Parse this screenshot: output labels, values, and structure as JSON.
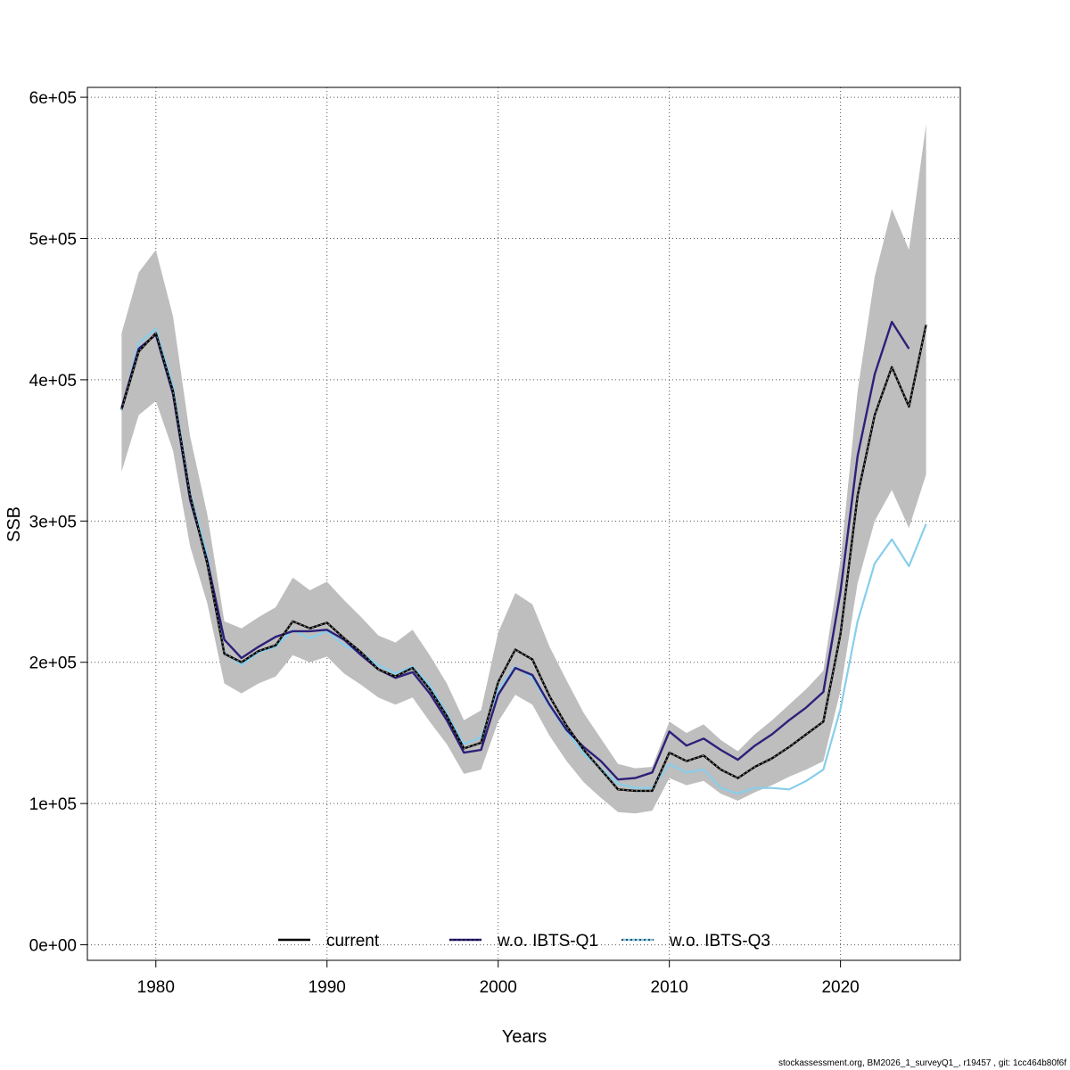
{
  "chart_data": {
    "type": "line",
    "xlabel": "Years",
    "ylabel": "SSB",
    "xlim": [
      1976,
      2027
    ],
    "ylim": [
      -11000,
      607000
    ],
    "x_ticks": [
      1980,
      1990,
      2000,
      2010,
      2020
    ],
    "x_tick_labels": [
      "1980",
      "1990",
      "2000",
      "2010",
      "2020"
    ],
    "y_ticks": [
      0,
      100000,
      200000,
      300000,
      400000,
      500000,
      600000
    ],
    "y_tick_labels": [
      "0e+00",
      "1e+05",
      "2e+05",
      "3e+05",
      "4e+05",
      "5e+05",
      "6e+05"
    ],
    "grid": true,
    "legend_position": "bottom",
    "years": [
      1978,
      1979,
      1980,
      1981,
      1982,
      1983,
      1984,
      1985,
      1986,
      1987,
      1988,
      1989,
      1990,
      1991,
      1992,
      1993,
      1994,
      1995,
      1996,
      1997,
      1998,
      1999,
      2000,
      2001,
      2002,
      2003,
      2004,
      2005,
      2006,
      2007,
      2008,
      2009,
      2010,
      2011,
      2012,
      2013,
      2014,
      2015,
      2016,
      2017,
      2018,
      2019,
      2020,
      2021,
      2022,
      2023,
      2024,
      2025
    ],
    "confidence_band": {
      "name": "current 95% CI",
      "color": "#bebebe",
      "upper": [
        433000,
        476000,
        492000,
        445000,
        360000,
        305000,
        229000,
        224000,
        232000,
        239000,
        260000,
        251000,
        257000,
        244000,
        232000,
        219000,
        214000,
        223000,
        205000,
        185000,
        159000,
        166000,
        221000,
        249000,
        241000,
        211000,
        187000,
        164000,
        146000,
        128000,
        125000,
        126000,
        158000,
        150000,
        156000,
        145000,
        137000,
        149000,
        159000,
        170000,
        181000,
        194000,
        272000,
        392000,
        473000,
        521000,
        492000,
        581000
      ],
      "lower": [
        335000,
        375000,
        385000,
        350000,
        282000,
        242000,
        185000,
        178000,
        185000,
        190000,
        205000,
        200000,
        204000,
        192000,
        184000,
        175000,
        170000,
        175000,
        158000,
        142000,
        121000,
        124000,
        158000,
        177000,
        170000,
        148000,
        130000,
        115000,
        104000,
        94000,
        93000,
        95000,
        118000,
        113000,
        116000,
        107000,
        102000,
        108000,
        113000,
        119000,
        124000,
        130000,
        180000,
        256000,
        300000,
        322000,
        295000,
        333000
      ]
    },
    "series": [
      {
        "name": "current",
        "color": "#000000",
        "values": [
          379000,
          420000,
          433000,
          392000,
          318000,
          270000,
          206000,
          200000,
          208000,
          212000,
          229000,
          224000,
          228000,
          217000,
          207000,
          195000,
          190000,
          196000,
          181000,
          162000,
          139000,
          143000,
          186000,
          209000,
          202000,
          176000,
          155000,
          138000,
          124000,
          110000,
          109000,
          109000,
          136000,
          130000,
          134000,
          124000,
          118000,
          126000,
          132000,
          140000,
          149000,
          158000,
          220000,
          318000,
          375000,
          409000,
          381000,
          439000
        ]
      },
      {
        "name": "w.o. IBTS-Q1",
        "color": "#2d1f7a",
        "values": [
          380000,
          422000,
          432000,
          390000,
          315000,
          272000,
          216000,
          203000,
          211000,
          218000,
          222000,
          222000,
          223000,
          216000,
          205000,
          195000,
          189000,
          193000,
          178000,
          159000,
          136000,
          138000,
          177000,
          196000,
          191000,
          170000,
          152000,
          140000,
          130000,
          117000,
          118000,
          122000,
          151000,
          141000,
          146000,
          138000,
          131000,
          141000,
          149000,
          159000,
          168000,
          179000,
          250000,
          346000,
          404000,
          441000,
          422000,
          null
        ]
      },
      {
        "name": "w.o. IBTS-Q3",
        "color": "#87ceeb",
        "values": [
          378000,
          426000,
          436000,
          396000,
          320000,
          276000,
          207000,
          198000,
          207000,
          211000,
          223000,
          217000,
          222000,
          212000,
          207000,
          198000,
          192000,
          197000,
          184000,
          164000,
          142000,
          147000,
          181000,
          197000,
          189000,
          169000,
          151000,
          135000,
          125000,
          114000,
          111000,
          111000,
          128000,
          122000,
          124000,
          111000,
          107000,
          111000,
          111000,
          110000,
          116000,
          124000,
          167000,
          229000,
          270000,
          287000,
          268000,
          298000
        ]
      }
    ],
    "footnote": "stockassessment.org, BM2026_1_surveyQ1_, r19457 , git: 1cc464b80f6f"
  }
}
